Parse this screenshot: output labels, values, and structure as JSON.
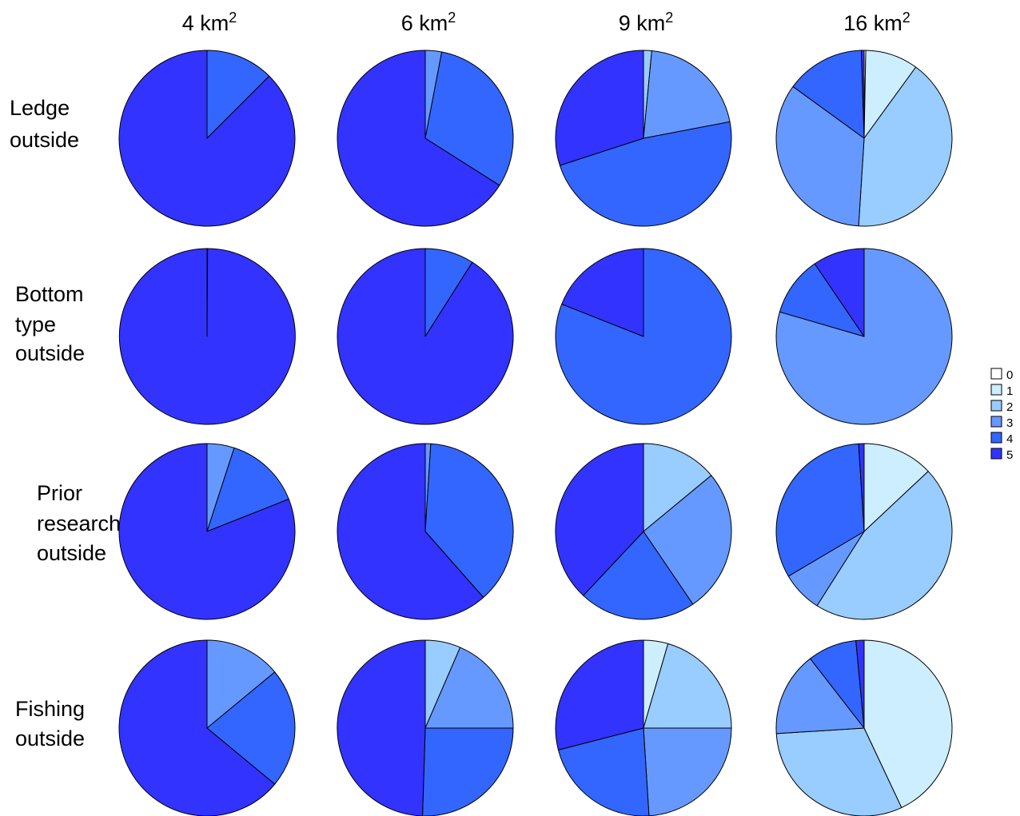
{
  "chart_data": {
    "type": "pie",
    "columns": [
      {
        "base": "4 km",
        "sup": "2"
      },
      {
        "base": "6 km",
        "sup": "2"
      },
      {
        "base": "9 km",
        "sup": "2"
      },
      {
        "base": "16 km",
        "sup": "2"
      }
    ],
    "rows": [
      {
        "lines": [
          "Ledge",
          "outside"
        ]
      },
      {
        "lines": [
          "Bottom",
          "type",
          "outside"
        ]
      },
      {
        "lines": [
          "Prior",
          "research",
          "outside"
        ]
      },
      {
        "lines": [
          "Fishing",
          "outside"
        ]
      }
    ],
    "legend": {
      "categories": [
        "0",
        "1",
        "2",
        "3",
        "4",
        "5"
      ],
      "colors": [
        "#ffffff",
        "#cceeff",
        "#99ccff",
        "#6699ff",
        "#3366ff",
        "#3333ff"
      ]
    },
    "pies": [
      [
        [
          0,
          0,
          0,
          0,
          12.5,
          87.5
        ],
        [
          0,
          0,
          0,
          3,
          31,
          66
        ],
        [
          0,
          0,
          1.5,
          20.5,
          48,
          30
        ],
        [
          0.3,
          9.7,
          41,
          34,
          14.5,
          0.5
        ]
      ],
      [
        [
          0,
          0,
          0,
          0,
          0.1,
          99.9
        ],
        [
          0,
          0,
          0,
          0,
          9,
          91
        ],
        [
          0,
          0,
          0,
          0,
          81,
          19
        ],
        [
          0,
          0,
          0,
          79.5,
          11,
          9.5
        ]
      ],
      [
        [
          0,
          0,
          0,
          5,
          14,
          81
        ],
        [
          0,
          0,
          0,
          1,
          37.5,
          61.5
        ],
        [
          0,
          0,
          14,
          26.5,
          21.5,
          38
        ],
        [
          0,
          13,
          46,
          7.5,
          32.5,
          1
        ]
      ],
      [
        [
          0,
          0,
          0,
          14,
          22,
          64
        ],
        [
          0,
          0,
          6.5,
          18.5,
          25.5,
          49.5
        ],
        [
          0,
          4.5,
          20.5,
          24,
          22,
          29
        ],
        [
          0,
          43,
          31,
          15.5,
          9,
          1.5
        ]
      ]
    ]
  }
}
